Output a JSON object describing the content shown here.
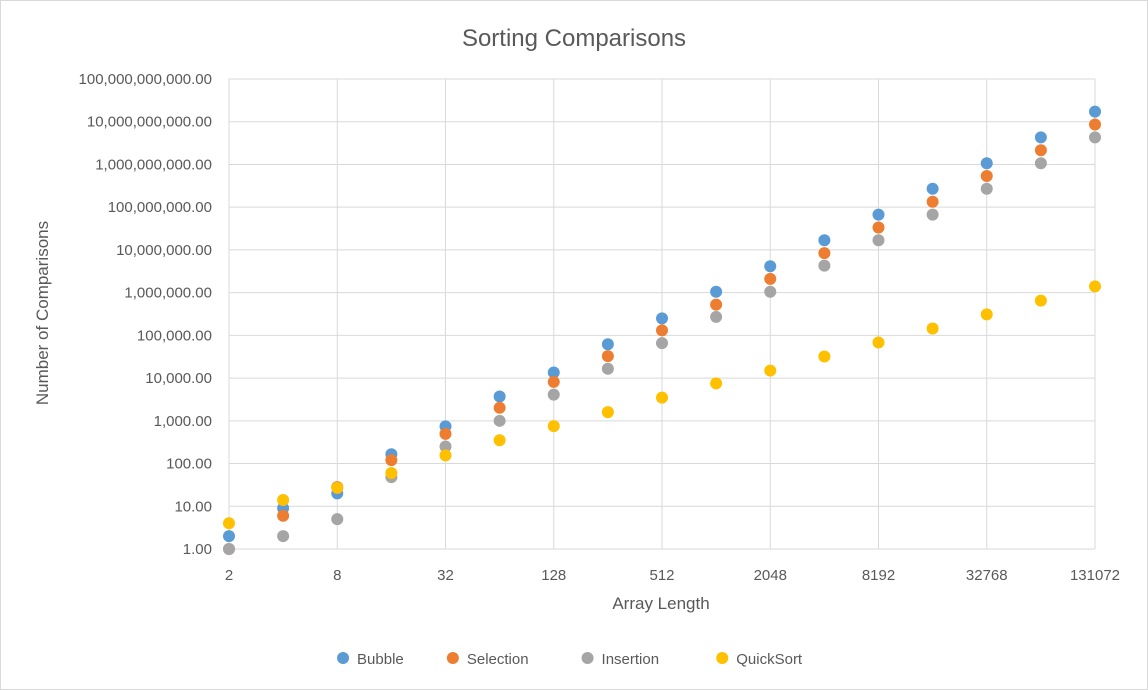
{
  "chart_data": {
    "type": "scatter",
    "title": "Sorting Comparisons",
    "xlabel": "Array Length",
    "ylabel": "Number of Comparisons",
    "x_scale": "log2",
    "y_scale": "log10",
    "xlim": [
      2,
      131072
    ],
    "ylim": [
      1,
      100000000000
    ],
    "grid": true,
    "legend_position": "bottom",
    "x_tick_labels": [
      "2",
      "8",
      "32",
      "128",
      "512",
      "2048",
      "8192",
      "32768",
      "131072"
    ],
    "y_tick_labels": [
      "1.00",
      "10.00",
      "100.00",
      "1,000.00",
      "10,000.00",
      "100,000.00",
      "1,000,000.00",
      "10,000,000.00",
      "100,000,000.00",
      "1,000,000,000.00",
      "10,000,000,000.00",
      "100,000,000,000.00"
    ],
    "x": [
      2,
      4,
      8,
      16,
      32,
      64,
      128,
      256,
      512,
      1024,
      2048,
      4096,
      8192,
      16384,
      32768,
      65536,
      131072
    ],
    "series": [
      {
        "name": "Bubble",
        "color": "#5b9bd5",
        "values": [
          2,
          9,
          20,
          165,
          740,
          3700,
          13500,
          62000,
          250000,
          1050000,
          4150000,
          16800000,
          67000000,
          270000000,
          1070000000,
          4300000000,
          17200000000
        ]
      },
      {
        "name": "Selection",
        "color": "#ed7d31",
        "values": [
          1,
          6,
          28,
          120,
          496,
          2016,
          8128,
          32640,
          130816,
          523776,
          2096128,
          8386560,
          33550336,
          134209536,
          536854528,
          2147450880,
          8589869056
        ]
      },
      {
        "name": "Insertion",
        "color": "#a5a5a5",
        "values": [
          1,
          2,
          5,
          48,
          250,
          1000,
          4100,
          16500,
          66000,
          270000,
          1050000,
          4300000,
          16800000,
          67000000,
          270000000,
          1070000000,
          4300000000
        ]
      },
      {
        "name": "QuickSort",
        "color": "#ffc000",
        "values": [
          4,
          14,
          27,
          60,
          155,
          350,
          750,
          1600,
          3500,
          7500,
          15000,
          32000,
          68000,
          145000,
          310000,
          650000,
          1400000
        ]
      }
    ]
  }
}
